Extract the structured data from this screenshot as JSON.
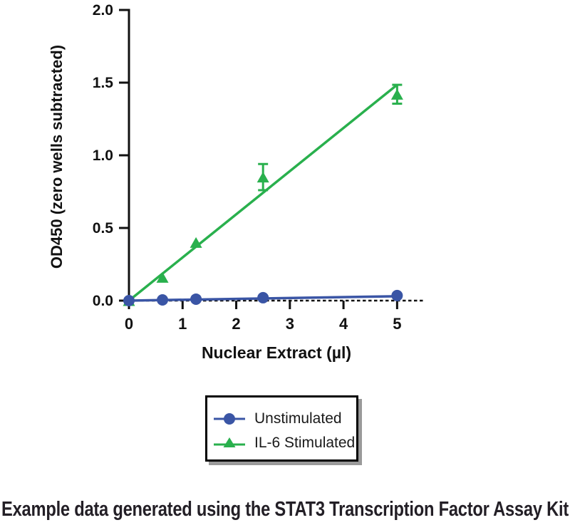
{
  "chart_data": {
    "type": "scatter",
    "title": "",
    "xlabel": "Nuclear Extract (µl)",
    "ylabel": "OD450 (zero wells subtracted)",
    "xlim": [
      0,
      5.5
    ],
    "ylim": [
      0,
      2.0
    ],
    "xticks": [
      0,
      1,
      2,
      3,
      4,
      5
    ],
    "yticks": [
      0,
      0.5,
      1.0,
      1.5,
      2.0
    ],
    "ytick_labels": [
      "0.0",
      "0.5",
      "1.0",
      "1.5",
      "2.0"
    ],
    "grid": false,
    "zero_line_style": "dashed",
    "legend_position": "below-center",
    "x": [
      0,
      0.625,
      1.25,
      2.5,
      5
    ],
    "series": [
      {
        "name": "Unstimulated",
        "marker": "circle",
        "color": "#3a55a5",
        "values": [
          0.0,
          0.005,
          0.01,
          0.02,
          0.035
        ],
        "errors": [
          0,
          0,
          0,
          0,
          0
        ],
        "fit_line": [
          [
            0,
            0.0
          ],
          [
            5,
            0.03
          ]
        ]
      },
      {
        "name": "IL-6 Stimulated",
        "marker": "triangle",
        "color": "#29b04d",
        "values": [
          0.0,
          0.16,
          0.4,
          0.85,
          1.42
        ],
        "errors": [
          0,
          0,
          0,
          0.09,
          0.065
        ],
        "fit_line": [
          [
            0,
            0.0
          ],
          [
            5,
            1.485
          ]
        ]
      }
    ]
  },
  "caption": {
    "text": "Example data generated using the STAT3 Transcription Factor Assay Kit"
  },
  "colors": {
    "axis": "#111111",
    "tick_label": "#111111",
    "caption_text": "#231f26",
    "legend_border": "#000000",
    "legend_shadow": "#9a9a9a"
  }
}
